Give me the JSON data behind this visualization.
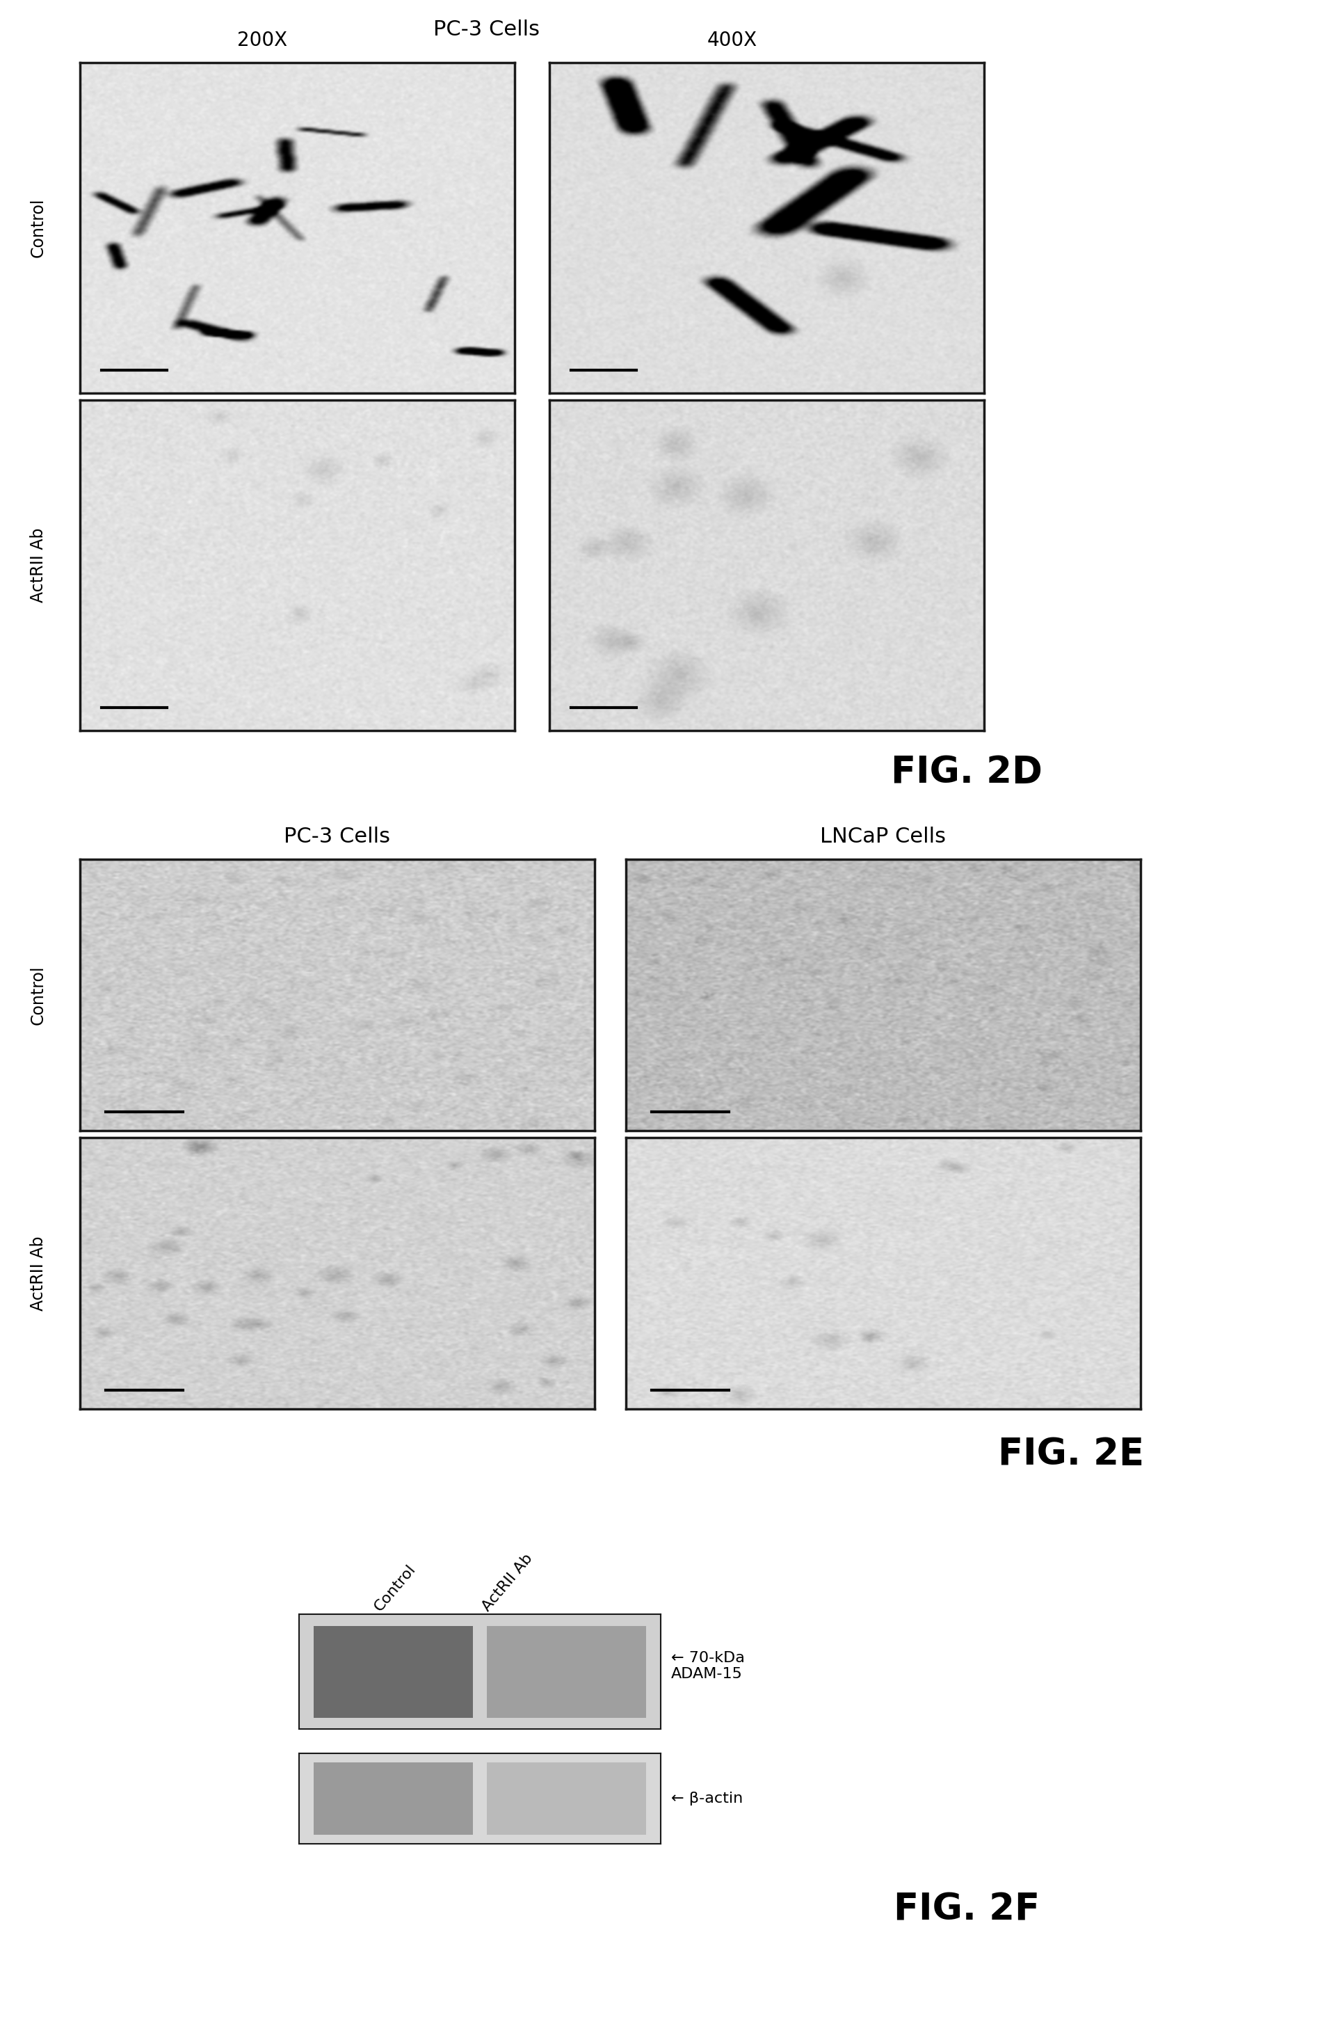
{
  "background_color": "#ffffff",
  "fig_2d_label": "FIG. 2D",
  "fig_2e_label": "FIG. 2E",
  "fig_2f_label": "FIG. 2F",
  "section_d_title": "PC-3 Cells",
  "section_d_200x": "200X",
  "section_d_400x": "400X",
  "section_e_pc3": "PC-3 Cells",
  "section_e_lncap": "LNCaP Cells",
  "row_label_control": "Control",
  "row_label_actrii": "ActRII Ab",
  "wb_label1": "70-kDa\nADAM-15",
  "wb_label2": "β-actin",
  "wb_col1": "Control",
  "wb_col2": "ActRII Ab",
  "text_color": "#000000",
  "border_color": "#1a1a1a",
  "section_d_img_bg": 0.88,
  "section_d_img_noise": 0.03,
  "section_e_img_bg_pc3_ctrl": 0.78,
  "section_e_img_bg_lncap_ctrl": 0.72,
  "section_e_img_bg_actrii": 0.82,
  "wb_bg_color": "#d4d4d4",
  "wb_band1_col1_color": "#7a7a7a",
  "wb_band1_col2_color": "#9a9a9a",
  "wb_band2_col1_color": "#a0a0a0",
  "wb_band2_col2_color": "#b0b0b0"
}
